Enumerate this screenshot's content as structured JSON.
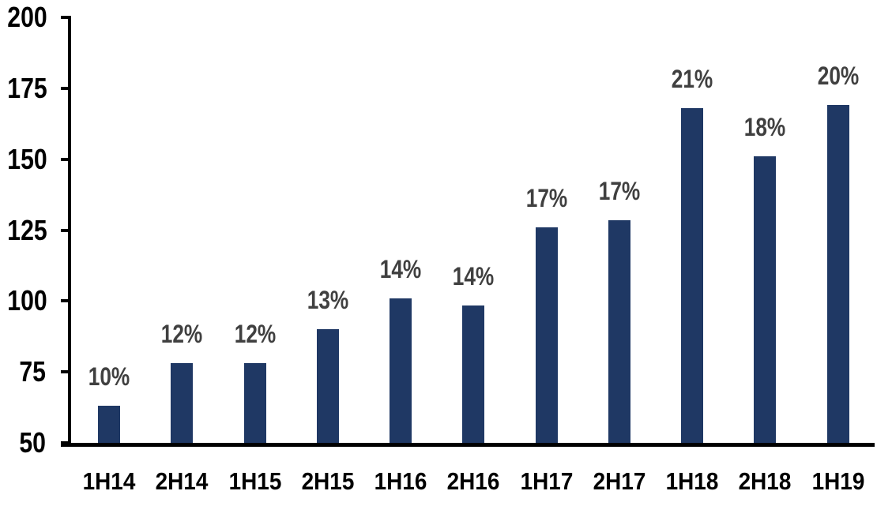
{
  "chart_data": {
    "type": "bar",
    "title": "",
    "xlabel": "",
    "ylabel": "",
    "categories": [
      "1H14",
      "2H14",
      "1H15",
      "2H15",
      "1H16",
      "2H16",
      "1H17",
      "2H17",
      "1H18",
      "2H18",
      "1H19"
    ],
    "values": [
      63,
      78,
      78,
      90,
      101,
      98.5,
      126,
      128.5,
      168,
      151,
      169
    ],
    "bar_labels": [
      "10%",
      "12%",
      "12%",
      "13%",
      "14%",
      "14%",
      "17%",
      "17%",
      "21%",
      "18%",
      "20%"
    ],
    "ylim": [
      50,
      200
    ],
    "yticks": [
      50,
      75,
      100,
      125,
      150,
      175,
      200
    ],
    "grid": false,
    "legend": false,
    "bar_color": "#1f3864",
    "bar_label_color": "#404040",
    "axis_color": "#000000",
    "background_color": "#ffffff"
  }
}
